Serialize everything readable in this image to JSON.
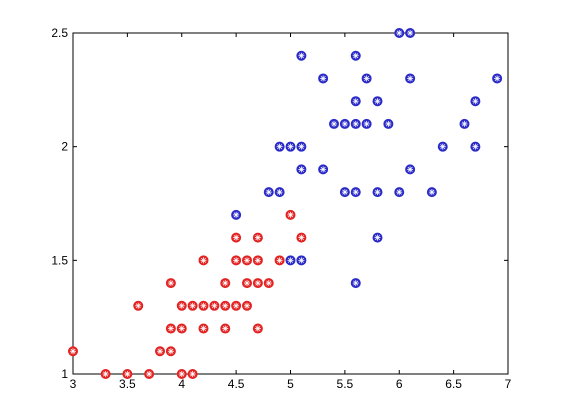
{
  "chart_data": {
    "type": "scatter",
    "series": [
      {
        "color": "#e32222",
        "x": [
          3.0,
          3.3,
          3.5,
          3.7,
          4.0,
          4.1,
          3.6,
          3.8,
          3.9,
          3.9,
          3.9,
          4.0,
          4.0,
          4.1,
          4.2,
          4.2,
          4.2,
          4.3,
          4.4,
          4.4,
          4.4,
          4.5,
          4.5,
          4.5,
          4.6,
          4.6,
          4.6,
          4.7,
          4.7,
          4.7,
          4.7,
          4.8,
          4.9,
          5.0,
          5.1
        ],
        "y": [
          1.1,
          1.0,
          1.0,
          1.0,
          1.0,
          1.0,
          1.3,
          1.1,
          1.1,
          1.2,
          1.4,
          1.2,
          1.3,
          1.3,
          1.3,
          1.2,
          1.5,
          1.3,
          1.3,
          1.4,
          1.2,
          1.3,
          1.5,
          1.6,
          1.3,
          1.4,
          1.5,
          1.2,
          1.4,
          1.5,
          1.6,
          1.4,
          1.5,
          1.7,
          1.6
        ]
      },
      {
        "color": "#2a2ac8",
        "x": [
          4.5,
          4.8,
          4.9,
          4.9,
          5.0,
          5.1,
          5.0,
          5.1,
          5.1,
          5.1,
          5.3,
          5.3,
          5.4,
          5.5,
          5.6,
          5.7,
          5.5,
          5.6,
          5.6,
          5.6,
          5.6,
          5.7,
          5.8,
          5.8,
          5.8,
          5.9,
          6.0,
          6.0,
          6.1,
          6.1,
          6.1,
          6.3,
          6.4,
          6.6,
          6.7,
          6.7,
          6.9
        ],
        "y": [
          1.7,
          1.8,
          1.8,
          2.0,
          2.0,
          2.0,
          1.5,
          1.5,
          1.9,
          2.4,
          2.3,
          1.9,
          2.1,
          2.1,
          2.1,
          2.1,
          1.8,
          1.8,
          2.2,
          2.4,
          1.4,
          2.3,
          2.2,
          1.8,
          1.6,
          2.1,
          1.8,
          2.5,
          2.5,
          2.3,
          1.9,
          1.8,
          2.0,
          2.1,
          2.2,
          2.0,
          2.3
        ]
      }
    ],
    "xlim": [
      3,
      7
    ],
    "ylim": [
      1,
      2.5
    ],
    "xticks": [
      3,
      3.5,
      4,
      4.5,
      5,
      5.5,
      6,
      6.5,
      7
    ],
    "yticks": [
      1,
      1.5,
      2,
      2.5
    ]
  }
}
